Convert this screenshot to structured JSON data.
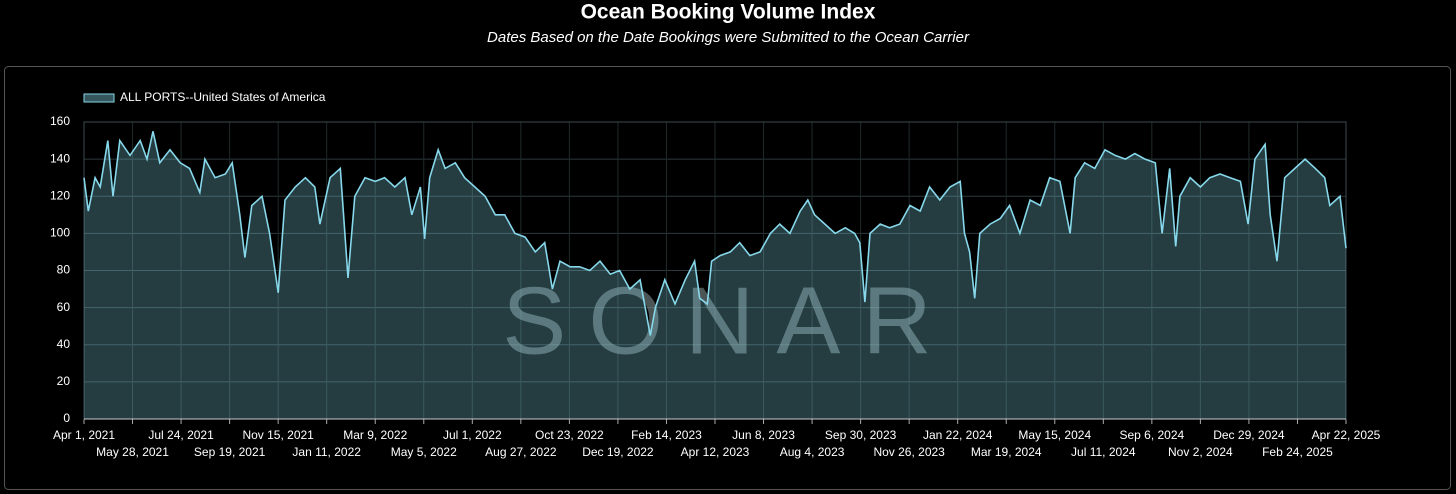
{
  "chart_data": {
    "type": "area",
    "title": "Ocean Booking Volume Index",
    "subtitle": "Dates Based on the Date Bookings were Submitted to the Ocean Carrier",
    "watermark": "SONAR",
    "grid": true,
    "legend_position": "top-left",
    "xlim": [
      "2021-04-01",
      "2025-04-22"
    ],
    "ylim": [
      0,
      160
    ],
    "yticks": [
      0,
      20,
      40,
      60,
      80,
      100,
      120,
      140,
      160
    ],
    "xticks": [
      {
        "value": "2021-04-01",
        "label": "Apr 1, 2021"
      },
      {
        "value": "2021-05-28",
        "label": "May 28, 2021"
      },
      {
        "value": "2021-07-24",
        "label": "Jul 24, 2021"
      },
      {
        "value": "2021-09-19",
        "label": "Sep 19, 2021"
      },
      {
        "value": "2021-11-15",
        "label": "Nov 15, 2021"
      },
      {
        "value": "2022-01-11",
        "label": "Jan 11, 2022"
      },
      {
        "value": "2022-03-09",
        "label": "Mar 9, 2022"
      },
      {
        "value": "2022-05-05",
        "label": "May 5, 2022"
      },
      {
        "value": "2022-07-01",
        "label": "Jul 1, 2022"
      },
      {
        "value": "2022-08-27",
        "label": "Aug 27, 2022"
      },
      {
        "value": "2022-10-23",
        "label": "Oct 23, 2022"
      },
      {
        "value": "2022-12-19",
        "label": "Dec 19, 2022"
      },
      {
        "value": "2023-02-14",
        "label": "Feb 14, 2023"
      },
      {
        "value": "2023-04-12",
        "label": "Apr 12, 2023"
      },
      {
        "value": "2023-06-08",
        "label": "Jun 8, 2023"
      },
      {
        "value": "2023-08-04",
        "label": "Aug 4, 2023"
      },
      {
        "value": "2023-09-30",
        "label": "Sep 30, 2023"
      },
      {
        "value": "2023-11-26",
        "label": "Nov 26, 2023"
      },
      {
        "value": "2024-01-22",
        "label": "Jan 22, 2024"
      },
      {
        "value": "2024-03-19",
        "label": "Mar 19, 2024"
      },
      {
        "value": "2024-05-15",
        "label": "May 15, 2024"
      },
      {
        "value": "2024-07-11",
        "label": "Jul 11, 2024"
      },
      {
        "value": "2024-09-06",
        "label": "Sep 6, 2024"
      },
      {
        "value": "2024-11-02",
        "label": "Nov 2, 2024"
      },
      {
        "value": "2024-12-29",
        "label": "Dec 29, 2024"
      },
      {
        "value": "2025-02-24",
        "label": "Feb 24, 2025"
      },
      {
        "value": "2025-04-22",
        "label": "Apr 22, 2025"
      }
    ],
    "x": [
      "2021-04-01",
      "2021-04-06",
      "2021-04-14",
      "2021-04-20",
      "2021-04-29",
      "2021-05-05",
      "2021-05-13",
      "2021-05-25",
      "2021-06-06",
      "2021-06-14",
      "2021-06-21",
      "2021-06-29",
      "2021-07-11",
      "2021-07-23",
      "2021-08-03",
      "2021-08-15",
      "2021-08-21",
      "2021-09-02",
      "2021-09-14",
      "2021-09-22",
      "2021-10-01",
      "2021-10-07",
      "2021-10-15",
      "2021-10-27",
      "2021-11-05",
      "2021-11-15",
      "2021-11-23",
      "2021-12-05",
      "2021-12-17",
      "2021-12-28",
      "2022-01-03",
      "2022-01-15",
      "2022-01-27",
      "2022-02-05",
      "2022-02-13",
      "2022-02-25",
      "2022-03-09",
      "2022-03-20",
      "2022-04-01",
      "2022-04-13",
      "2022-04-21",
      "2022-05-01",
      "2022-05-06",
      "2022-05-12",
      "2022-05-22",
      "2022-05-30",
      "2022-06-11",
      "2022-06-22",
      "2022-07-04",
      "2022-07-16",
      "2022-07-28",
      "2022-08-08",
      "2022-08-20",
      "2022-09-01",
      "2022-09-13",
      "2022-09-24",
      "2022-10-03",
      "2022-10-12",
      "2022-10-24",
      "2022-11-04",
      "2022-11-16",
      "2022-11-28",
      "2022-12-10",
      "2022-12-21",
      "2023-01-02",
      "2023-01-14",
      "2023-01-20",
      "2023-01-26",
      "2023-02-01",
      "2023-02-12",
      "2023-02-24",
      "2023-03-08",
      "2023-03-19",
      "2023-03-25",
      "2023-04-03",
      "2023-04-08",
      "2023-04-18",
      "2023-04-30",
      "2023-05-11",
      "2023-05-23",
      "2023-06-04",
      "2023-06-16",
      "2023-06-27",
      "2023-07-09",
      "2023-07-21",
      "2023-07-30",
      "2023-08-07",
      "2023-08-19",
      "2023-08-31",
      "2023-09-12",
      "2023-09-23",
      "2023-09-29",
      "2023-10-05",
      "2023-10-11",
      "2023-10-23",
      "2023-11-03",
      "2023-11-15",
      "2023-11-27",
      "2023-12-09",
      "2023-12-20",
      "2024-01-01",
      "2024-01-13",
      "2024-01-25",
      "2024-01-30",
      "2024-02-05",
      "2024-02-11",
      "2024-02-17",
      "2024-02-29",
      "2024-03-12",
      "2024-03-23",
      "2024-04-04",
      "2024-04-16",
      "2024-04-28",
      "2024-05-09",
      "2024-05-21",
      "2024-06-02",
      "2024-06-08",
      "2024-06-19",
      "2024-07-01",
      "2024-07-13",
      "2024-07-25",
      "2024-08-06",
      "2024-08-17",
      "2024-08-29",
      "2024-09-10",
      "2024-09-18",
      "2024-09-27",
      "2024-10-04",
      "2024-10-09",
      "2024-10-21",
      "2024-11-02",
      "2024-11-13",
      "2024-11-25",
      "2024-12-07",
      "2024-12-19",
      "2024-12-28",
      "2025-01-05",
      "2025-01-17",
      "2025-01-23",
      "2025-01-31",
      "2025-02-09",
      "2025-02-21",
      "2025-03-05",
      "2025-03-17",
      "2025-03-28",
      "2025-04-03",
      "2025-04-15",
      "2025-04-22"
    ],
    "series": [
      {
        "name": "ALL PORTS--United States of America",
        "color": "#86d8ea",
        "values": [
          130,
          112,
          130,
          125,
          150,
          120,
          150,
          142,
          150,
          140,
          155,
          138,
          145,
          138,
          135,
          122,
          140,
          130,
          132,
          138,
          110,
          87,
          115,
          120,
          100,
          68,
          118,
          125,
          130,
          125,
          105,
          130,
          135,
          76,
          120,
          130,
          128,
          130,
          125,
          130,
          110,
          125,
          97,
          130,
          145,
          135,
          138,
          130,
          125,
          120,
          110,
          110,
          100,
          98,
          90,
          95,
          70,
          85,
          82,
          82,
          80,
          85,
          78,
          80,
          70,
          75,
          60,
          45,
          60,
          75,
          62,
          75,
          85,
          65,
          62,
          85,
          88,
          90,
          95,
          88,
          90,
          100,
          105,
          100,
          112,
          118,
          110,
          105,
          100,
          103,
          100,
          95,
          63,
          100,
          105,
          103,
          105,
          115,
          112,
          125,
          118,
          125,
          128,
          100,
          90,
          65,
          100,
          105,
          108,
          115,
          100,
          118,
          115,
          130,
          128,
          100,
          130,
          138,
          135,
          145,
          142,
          140,
          143,
          140,
          138,
          100,
          135,
          93,
          120,
          130,
          125,
          130,
          132,
          130,
          128,
          105,
          140,
          148,
          110,
          85,
          130,
          135,
          140,
          135,
          130,
          115,
          120,
          92
        ]
      }
    ]
  }
}
